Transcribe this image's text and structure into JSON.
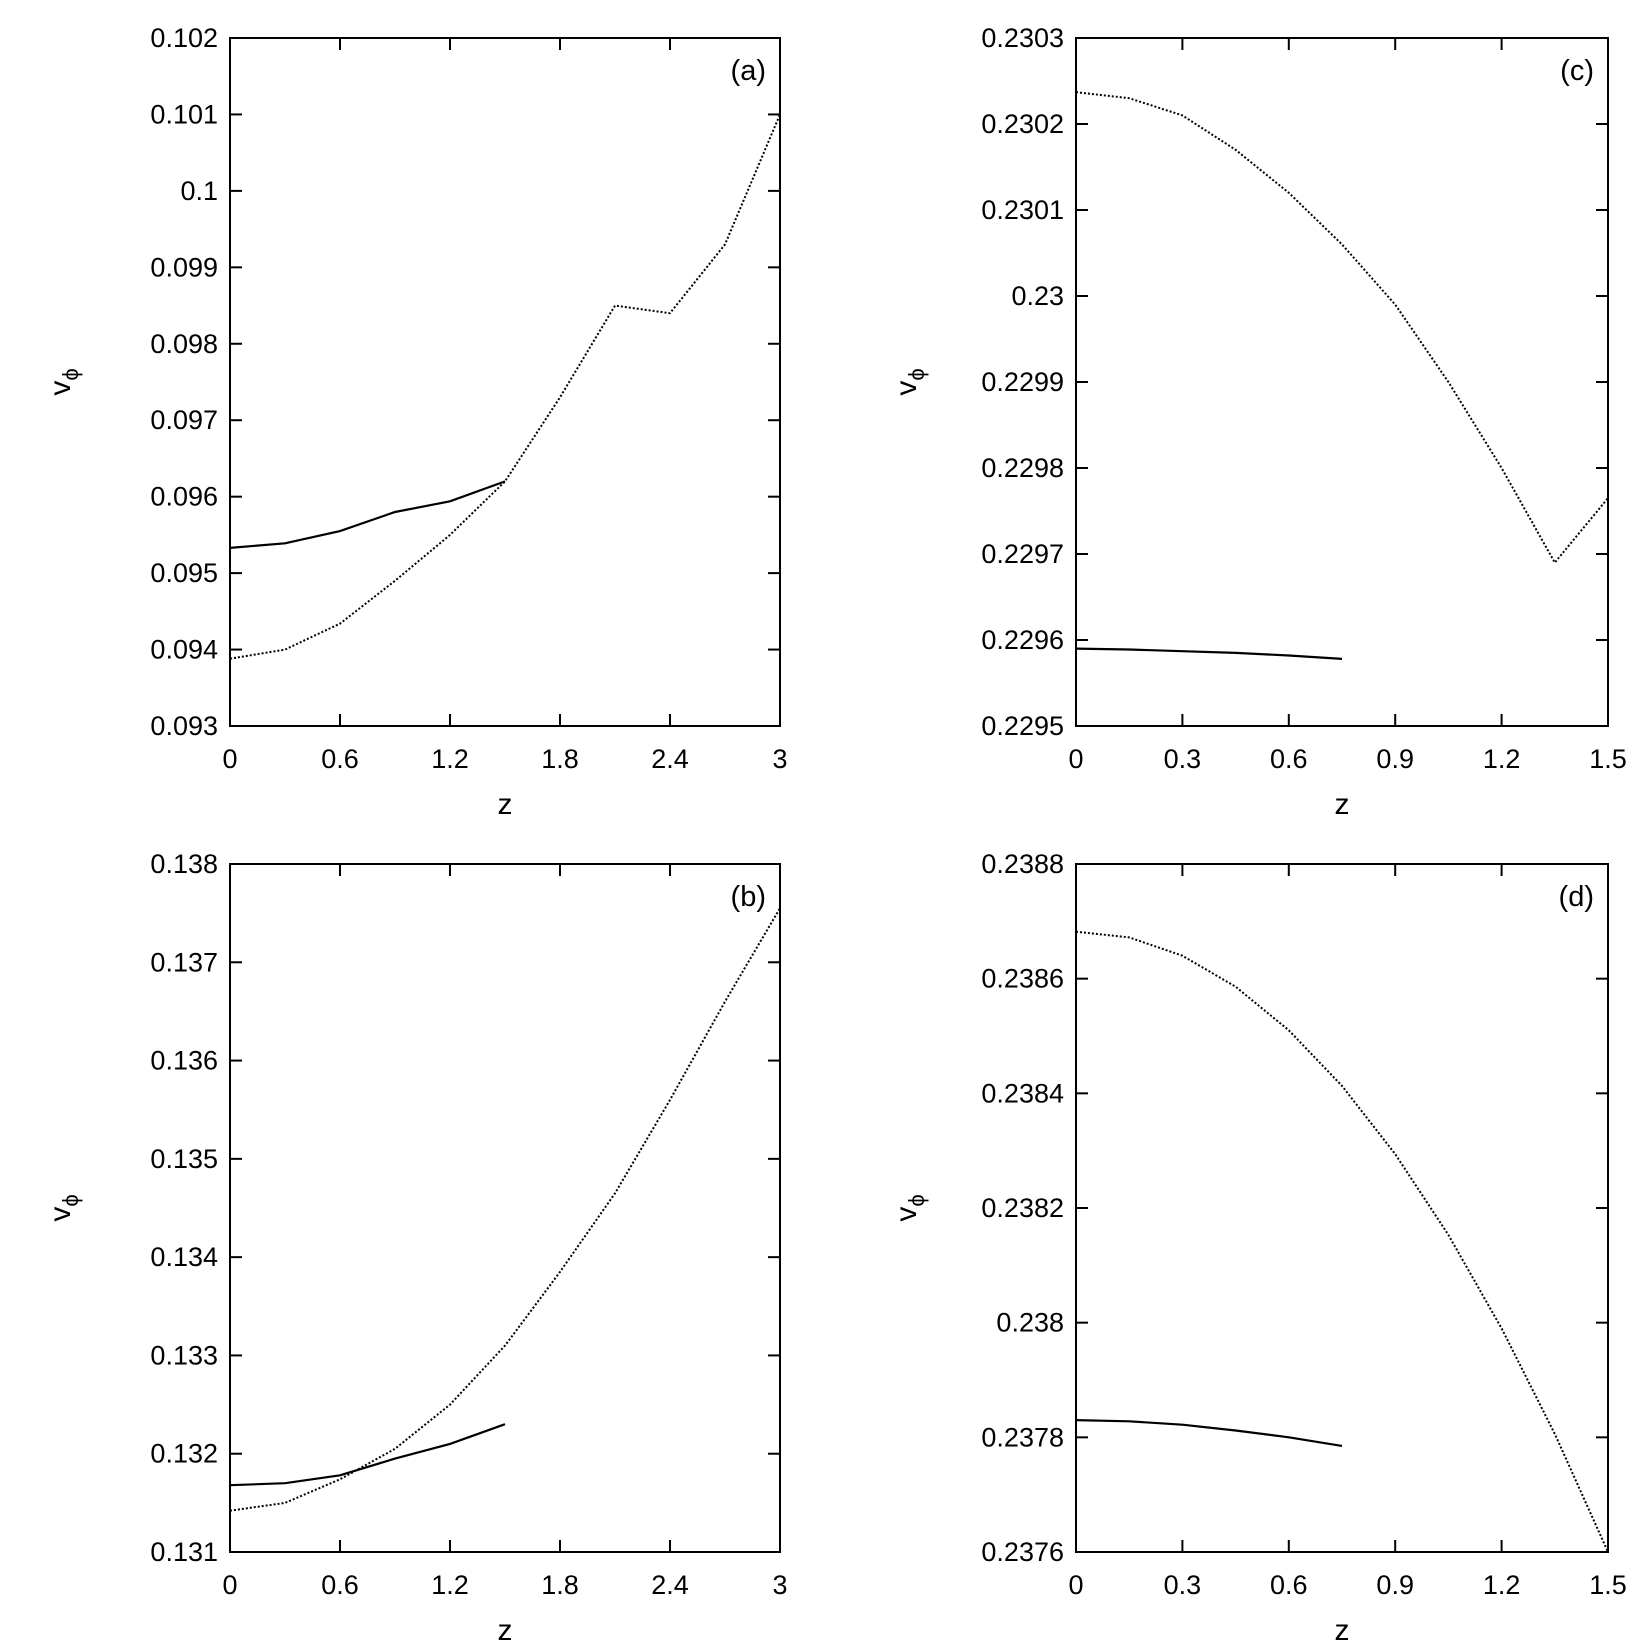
{
  "colors": {
    "background": "#ffffff",
    "ink": "#000000"
  },
  "chart_data": [
    {
      "type": "line",
      "panel_label": "(a)",
      "xlabel": "z",
      "ylabel": "v",
      "ylabel_sub": "ϕ",
      "xlim": [
        0,
        3
      ],
      "ylim": [
        0.093,
        0.102
      ],
      "xticks": [
        "0",
        "0.6",
        "1.2",
        "1.8",
        "2.4",
        "3"
      ],
      "yticks": [
        "0.093",
        "0.094",
        "0.095",
        "0.096",
        "0.097",
        "0.098",
        "0.099",
        "0.1",
        "0.101",
        "0.102"
      ],
      "series": [
        {
          "style": "solid",
          "x": [
            0,
            0.3,
            0.6,
            0.9,
            1.2,
            1.5
          ],
          "y": [
            0.09533,
            0.09539,
            0.09555,
            0.0958,
            0.09594,
            0.0962
          ]
        },
        {
          "style": "dotted",
          "x": [
            0,
            0.3,
            0.6,
            0.9,
            1.2,
            1.5,
            1.8,
            2.1,
            2.4,
            2.7,
            3.0
          ],
          "y": [
            0.09388,
            0.094,
            0.09434,
            0.0949,
            0.0955,
            0.0962,
            0.0973,
            0.0985,
            0.0984,
            0.0993,
            0.101
          ]
        }
      ]
    },
    {
      "type": "line",
      "panel_label": "(b)",
      "xlabel": "z",
      "ylabel": "v",
      "ylabel_sub": "ϕ",
      "xlim": [
        0,
        3
      ],
      "ylim": [
        0.131,
        0.138
      ],
      "xticks": [
        "0",
        "0.6",
        "1.2",
        "1.8",
        "2.4",
        "3"
      ],
      "yticks": [
        "0.131",
        "0.132",
        "0.133",
        "0.134",
        "0.135",
        "0.136",
        "0.137",
        "0.138"
      ],
      "series": [
        {
          "style": "solid",
          "x": [
            0,
            0.3,
            0.6,
            0.9,
            1.2,
            1.5
          ],
          "y": [
            0.13168,
            0.1317,
            0.13178,
            0.13195,
            0.1321,
            0.1323
          ]
        },
        {
          "style": "dotted",
          "x": [
            0,
            0.3,
            0.6,
            0.9,
            1.2,
            1.5,
            1.8,
            2.1,
            2.4,
            2.7,
            3.0
          ],
          "y": [
            0.13142,
            0.1315,
            0.13174,
            0.13205,
            0.1325,
            0.1331,
            0.13385,
            0.13465,
            0.1356,
            0.1366,
            0.13755
          ]
        }
      ]
    },
    {
      "type": "line",
      "panel_label": "(c)",
      "xlabel": "z",
      "ylabel": "v",
      "ylabel_sub": "ϕ",
      "xlim": [
        0,
        1.5
      ],
      "ylim": [
        0.2295,
        0.2303
      ],
      "xticks": [
        "0",
        "0.3",
        "0.6",
        "0.9",
        "1.2",
        "1.5"
      ],
      "yticks": [
        "0.2295",
        "0.2296",
        "0.2297",
        "0.2298",
        "0.2299",
        "0.23",
        "0.2301",
        "0.2302",
        "0.2303"
      ],
      "series": [
        {
          "style": "solid",
          "x": [
            0,
            0.15,
            0.3,
            0.45,
            0.6,
            0.75
          ],
          "y": [
            0.22959,
            0.229589,
            0.229587,
            0.229585,
            0.229582,
            0.229578
          ]
        },
        {
          "style": "dotted",
          "x": [
            0,
            0.15,
            0.3,
            0.45,
            0.6,
            0.75,
            0.9,
            1.05,
            1.2,
            1.35,
            1.5
          ],
          "y": [
            0.230237,
            0.23023,
            0.23021,
            0.23017,
            0.23012,
            0.23006,
            0.22999,
            0.2299,
            0.2298,
            0.22969,
            0.229765
          ]
        }
      ]
    },
    {
      "type": "line",
      "panel_label": "(d)",
      "xlabel": "z",
      "ylabel": "v",
      "ylabel_sub": "ϕ",
      "xlim": [
        0,
        1.5
      ],
      "ylim": [
        0.2376,
        0.2388
      ],
      "xticks": [
        "0",
        "0.3",
        "0.6",
        "0.9",
        "1.2",
        "1.5"
      ],
      "yticks": [
        "0.2376",
        "0.2378",
        "0.238",
        "0.2382",
        "0.2384",
        "0.2386",
        "0.2388"
      ],
      "series": [
        {
          "style": "solid",
          "x": [
            0,
            0.15,
            0.3,
            0.45,
            0.6,
            0.75
          ],
          "y": [
            0.23783,
            0.237828,
            0.237822,
            0.237812,
            0.2378,
            0.237785
          ]
        },
        {
          "style": "dotted",
          "x": [
            0,
            0.15,
            0.3,
            0.45,
            0.6,
            0.75,
            0.9,
            1.05,
            1.2,
            1.35,
            1.5
          ],
          "y": [
            0.238682,
            0.238672,
            0.23864,
            0.238586,
            0.23851,
            0.238413,
            0.238294,
            0.238153,
            0.23799,
            0.237806,
            0.2376
          ]
        }
      ]
    }
  ]
}
